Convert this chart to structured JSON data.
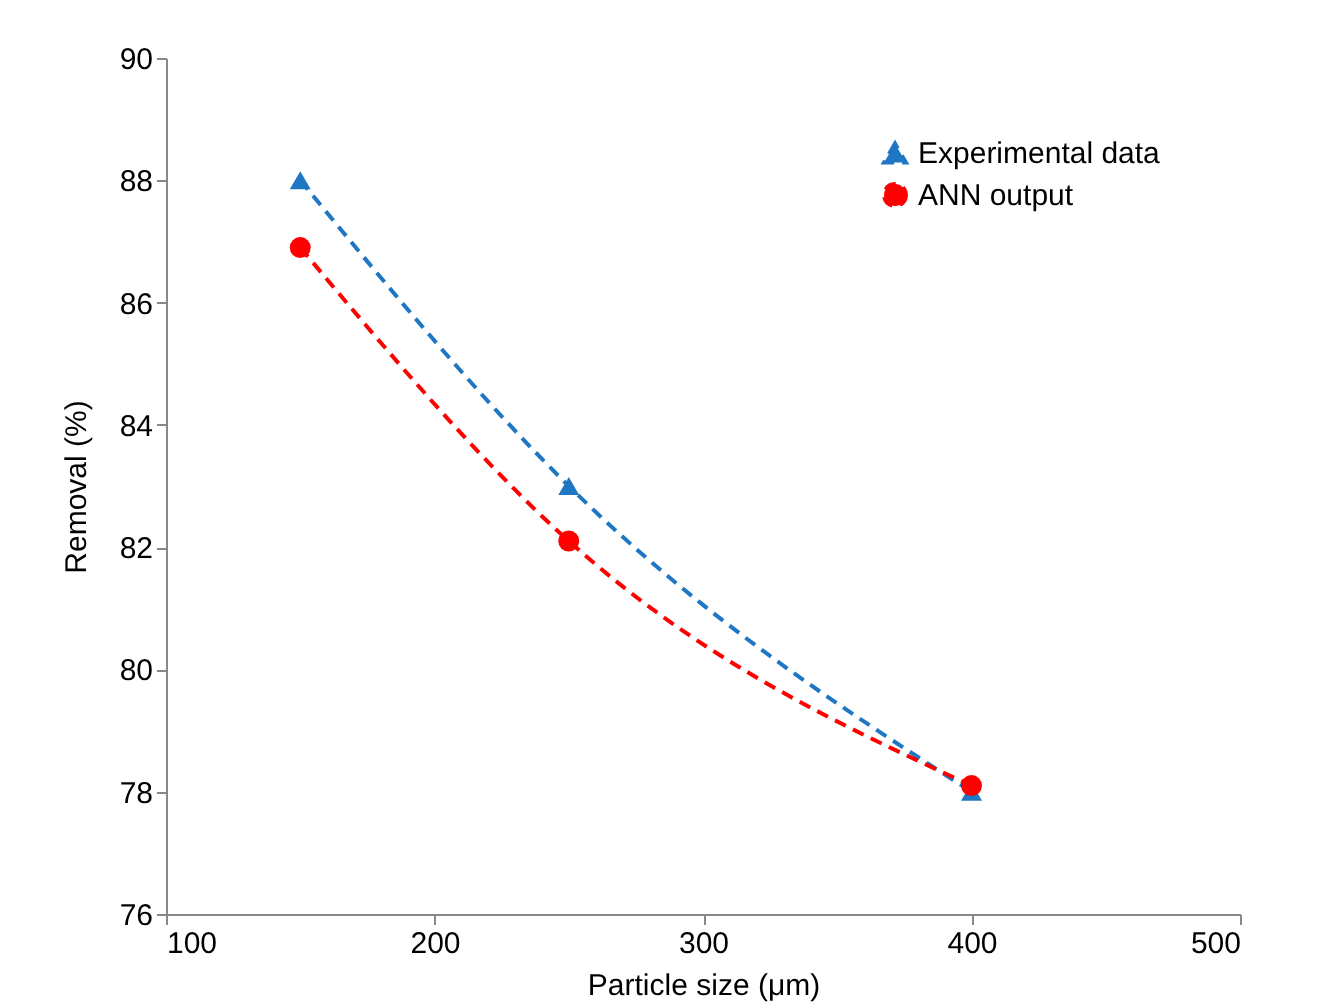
{
  "chart_data": {
    "type": "line",
    "xlabel": "Particle size (μm)",
    "ylabel": "Removal (%)",
    "x": [
      150,
      250,
      400
    ],
    "series": [
      {
        "name": "Experimental data",
        "color": "#1f77c4",
        "values": [
          88,
          83,
          78
        ],
        "marker": "triangle",
        "line_style": "dashed"
      },
      {
        "name": "ANN output",
        "color": "#ff0000",
        "values": [
          86.9,
          82.1,
          78.1
        ],
        "marker": "circle",
        "line_style": "dashed"
      }
    ],
    "xlim": [
      100,
      500
    ],
    "xticks": [
      100,
      200,
      300,
      400,
      500
    ],
    "ylim": [
      76,
      90
    ],
    "yticks": [
      76,
      78,
      80,
      82,
      84,
      86,
      88,
      90
    ],
    "grid": false,
    "legend": "top right"
  }
}
